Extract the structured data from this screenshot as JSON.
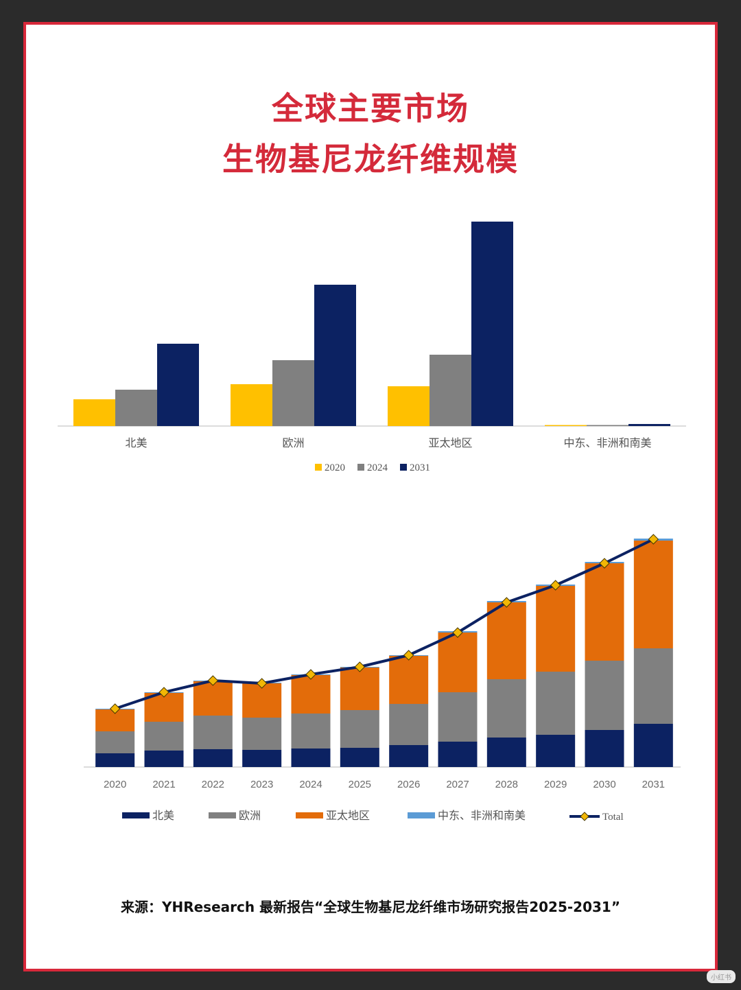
{
  "title_line1": "全球主要市场",
  "title_line2": "生物基尼龙纤维规模",
  "source_text": "来源：YHResearch   最新报告“全球生物基尼龙纤维市场研究报告2025-2031”",
  "watermark_text": "小红书",
  "colors": {
    "title": "#d42a3a",
    "border": "#d8283a",
    "y2020": "#ffc000",
    "y2024": "#808080",
    "y2031": "#0c2262",
    "na": "#0c2262",
    "eu": "#808080",
    "apac": "#e36c0a",
    "mea": "#5b9bd5",
    "total": "#0c2262",
    "marker": "#f2b705"
  },
  "chart_data": [
    {
      "type": "bar",
      "categories": [
        "北美",
        "欧洲",
        "亚太地区",
        "中东、非洲和南美"
      ],
      "series": [
        {
          "name": "2020",
          "values": [
            39,
            61,
            58,
            1
          ]
        },
        {
          "name": "2024",
          "values": [
            53,
            96,
            104,
            1
          ]
        },
        {
          "name": "2031",
          "values": [
            120,
            206,
            298,
            3
          ]
        }
      ],
      "ylim": [
        0,
        300
      ],
      "title": "",
      "xlabel": "",
      "ylabel": "",
      "legend": "bottom-center"
    },
    {
      "type": "bar",
      "stacked": true,
      "categories": [
        "2020",
        "2021",
        "2022",
        "2023",
        "2024",
        "2025",
        "2026",
        "2027",
        "2028",
        "2029",
        "2030",
        "2031"
      ],
      "series": [
        {
          "name": "北美",
          "values": [
            20,
            24,
            26,
            25,
            27,
            28,
            32,
            37,
            43,
            47,
            54,
            63
          ]
        },
        {
          "name": "欧洲",
          "values": [
            32,
            42,
            49,
            47,
            51,
            55,
            60,
            72,
            85,
            92,
            101,
            110
          ]
        },
        {
          "name": "亚太地区",
          "values": [
            32,
            42,
            50,
            50,
            56,
            62,
            70,
            87,
            112,
            125,
            142,
            157
          ]
        },
        {
          "name": "中东、非洲和南美",
          "values": [
            1,
            1,
            1,
            1,
            1,
            1,
            1,
            2,
            2,
            2,
            2,
            3
          ]
        }
      ],
      "line_series": {
        "name": "Total",
        "values": [
          85,
          109,
          126,
          122,
          135,
          146,
          163,
          196,
          240,
          265,
          297,
          332
        ]
      },
      "ylim": [
        0,
        340
      ],
      "title": "",
      "xlabel": "",
      "ylabel": "",
      "legend": "bottom-center"
    }
  ]
}
